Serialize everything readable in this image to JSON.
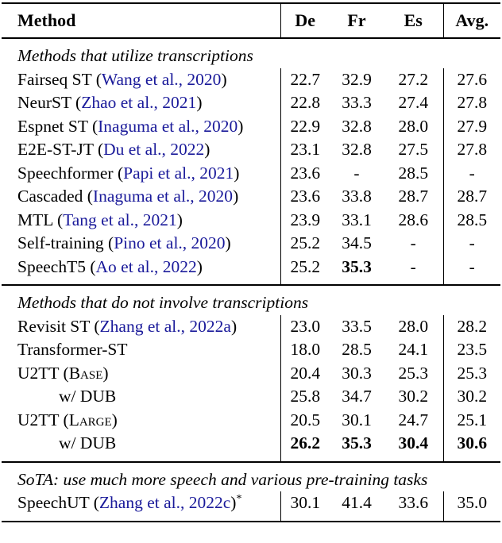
{
  "colors": {
    "citation": "#1a1a9a",
    "text": "#000000",
    "background": "#ffffff",
    "rule": "#000000"
  },
  "table": {
    "header": {
      "method": "Method",
      "cols": [
        "De",
        "Fr",
        "Es",
        "Avg."
      ]
    },
    "sections": [
      {
        "heading": "Methods that utilize transcriptions",
        "rows": [
          {
            "method": {
              "pre": "Fairseq ST (",
              "cite": "Wang et al., 2020",
              "post": ")"
            },
            "values": [
              "22.7",
              "32.9",
              "27.2",
              "27.6"
            ],
            "bold": []
          },
          {
            "method": {
              "pre": "NeurST (",
              "cite": "Zhao et al., 2021",
              "post": ")"
            },
            "values": [
              "22.8",
              "33.3",
              "27.4",
              "27.8"
            ],
            "bold": []
          },
          {
            "method": {
              "pre": "Espnet ST (",
              "cite": "Inaguma et al., 2020",
              "post": ")"
            },
            "values": [
              "22.9",
              "32.8",
              "28.0",
              "27.9"
            ],
            "bold": []
          },
          {
            "method": {
              "pre": "E2E-ST-JT (",
              "cite": "Du et al., 2022",
              "post": ")"
            },
            "values": [
              "23.1",
              "32.8",
              "27.5",
              "27.8"
            ],
            "bold": []
          },
          {
            "method": {
              "pre": "Speechformer (",
              "cite": "Papi et al., 2021",
              "post": ")"
            },
            "values": [
              "23.6",
              "-",
              "28.5",
              "-"
            ],
            "bold": []
          },
          {
            "method": {
              "pre": "Cascaded (",
              "cite": "Inaguma et al., 2020",
              "post": ")"
            },
            "values": [
              "23.6",
              "33.8",
              "28.7",
              "28.7"
            ],
            "bold": []
          },
          {
            "method": {
              "pre": "MTL (",
              "cite": "Tang et al., 2021",
              "post": ")"
            },
            "values": [
              "23.9",
              "33.1",
              "28.6",
              "28.5"
            ],
            "bold": []
          },
          {
            "method": {
              "pre": "Self-training (",
              "cite": "Pino et al., 2020",
              "post": ")"
            },
            "values": [
              "25.2",
              "34.5",
              "-",
              "-"
            ],
            "bold": []
          },
          {
            "method": {
              "pre": "SpeechT5 (",
              "cite": "Ao et al., 2022",
              "post": ")"
            },
            "values": [
              "25.2",
              "35.3",
              "-",
              "-"
            ],
            "bold": [
              1
            ]
          }
        ]
      },
      {
        "heading": "Methods that do not involve transcriptions",
        "rows": [
          {
            "method": {
              "pre": "Revisit ST (",
              "cite": "Zhang et al., 2022a",
              "post": ")"
            },
            "values": [
              "23.0",
              "33.5",
              "28.0",
              "28.2"
            ],
            "bold": []
          },
          {
            "method": {
              "pre": "Transformer-ST"
            },
            "values": [
              "18.0",
              "28.5",
              "24.1",
              "23.5"
            ],
            "bold": []
          },
          {
            "method": {
              "pre": "U2TT (",
              "smallcaps": "Base",
              "post": ")"
            },
            "values": [
              "20.4",
              "30.3",
              "25.3",
              "25.3"
            ],
            "bold": []
          },
          {
            "method": {
              "pre": "w/ DUB",
              "indent": true
            },
            "values": [
              "25.8",
              "34.7",
              "30.2",
              "30.2"
            ],
            "bold": []
          },
          {
            "method": {
              "pre": "U2TT (",
              "smallcaps": "Large",
              "post": ")"
            },
            "values": [
              "20.5",
              "30.1",
              "24.7",
              "25.1"
            ],
            "bold": []
          },
          {
            "method": {
              "pre": "w/ DUB",
              "indent": true
            },
            "values": [
              "26.2",
              "35.3",
              "30.4",
              "30.6"
            ],
            "bold": [
              0,
              1,
              2,
              3
            ]
          }
        ]
      },
      {
        "heading": "SoTA: use much more speech and various pre-training tasks",
        "rows": [
          {
            "method": {
              "pre": "SpeechUT (",
              "cite": "Zhang et al., 2022c",
              "post": ")",
              "sup": "*"
            },
            "values": [
              "30.1",
              "41.4",
              "33.6",
              "35.0"
            ],
            "bold": []
          }
        ]
      }
    ]
  }
}
